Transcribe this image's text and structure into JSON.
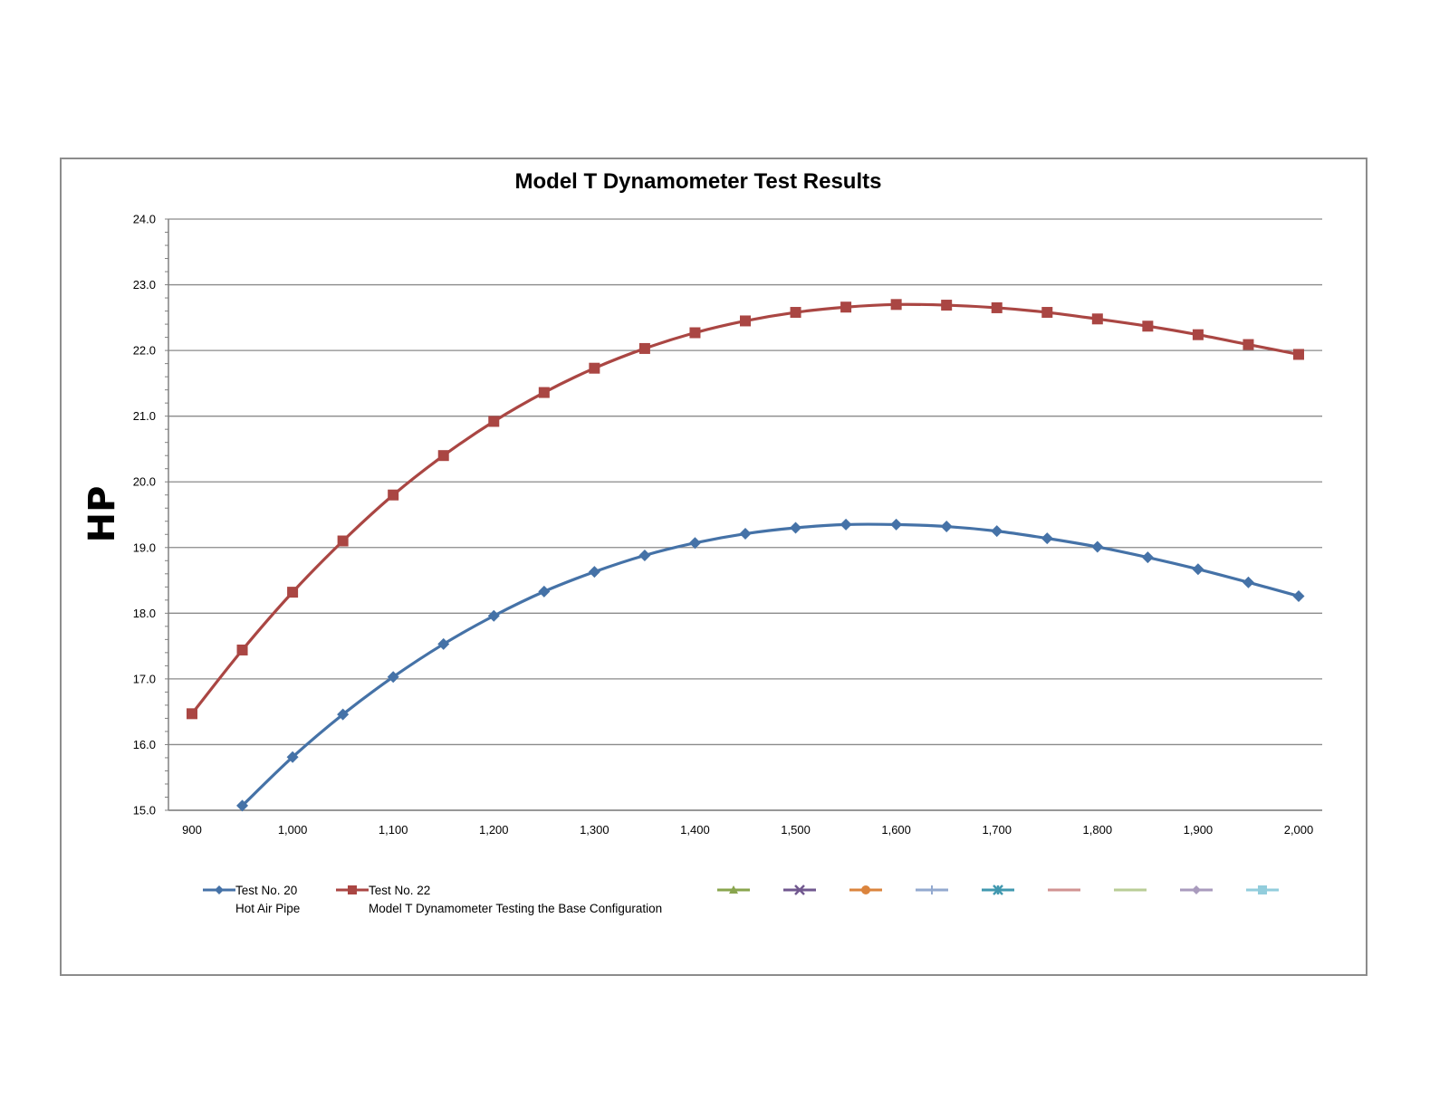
{
  "colors": {
    "series1": "#4572A7",
    "series2": "#AA4643",
    "empty1": "#89A54E",
    "empty2": "#71588F",
    "empty3": "#DB843D",
    "empty4": "#93A9CF",
    "empty5": "#4198AF",
    "empty6": "#D19392",
    "empty7": "#B9CD96",
    "empty8": "#A99BBD",
    "empty9": "#92CDDC"
  },
  "chart_data": {
    "type": "line",
    "title": "Model T Dynamometer Test Results",
    "xlabel": "",
    "ylabel": "HP",
    "xlim": [
      900,
      2000
    ],
    "ylim": [
      15.0,
      24.0
    ],
    "grid": true,
    "legend": "bottom",
    "x_ticks": [
      "900",
      "1,000",
      "1,100",
      "1,200",
      "1,300",
      "1,400",
      "1,500",
      "1,600",
      "1,700",
      "1,800",
      "1,900",
      "2,000"
    ],
    "y_ticks": [
      "15.0",
      "16.0",
      "17.0",
      "18.0",
      "19.0",
      "20.0",
      "21.0",
      "22.0",
      "23.0",
      "24.0"
    ],
    "series": [
      {
        "name": "Test No. 20",
        "subtitle": "Hot Air Pipe",
        "marker": "diamond",
        "x": [
          950,
          1000,
          1050,
          1100,
          1150,
          1200,
          1250,
          1300,
          1350,
          1400,
          1450,
          1500,
          1550,
          1600,
          1650,
          1700,
          1750,
          1800,
          1850,
          1900,
          1950,
          2000
        ],
        "values": [
          15.07,
          15.81,
          16.46,
          17.03,
          17.53,
          17.96,
          18.33,
          18.63,
          18.88,
          19.07,
          19.21,
          19.3,
          19.35,
          19.35,
          19.32,
          19.25,
          19.14,
          19.01,
          18.85,
          18.67,
          18.47,
          18.26
        ]
      },
      {
        "name": "Test No. 22",
        "subtitle": "Model T Dynamometer Testing the Base Configuration",
        "marker": "square",
        "x": [
          900,
          950,
          1000,
          1050,
          1100,
          1150,
          1200,
          1250,
          1300,
          1350,
          1400,
          1450,
          1500,
          1550,
          1600,
          1650,
          1700,
          1750,
          1800,
          1850,
          1900,
          1950,
          2000
        ],
        "values": [
          16.47,
          17.44,
          18.32,
          19.1,
          19.8,
          20.4,
          20.92,
          21.36,
          21.73,
          22.03,
          22.27,
          22.45,
          22.58,
          22.66,
          22.7,
          22.69,
          22.65,
          22.58,
          22.48,
          22.37,
          22.24,
          22.09,
          21.94
        ]
      }
    ],
    "empty_legend_markers": [
      "triangle",
      "x",
      "circle",
      "plus",
      "star",
      "none",
      "none",
      "diamond",
      "square"
    ]
  }
}
